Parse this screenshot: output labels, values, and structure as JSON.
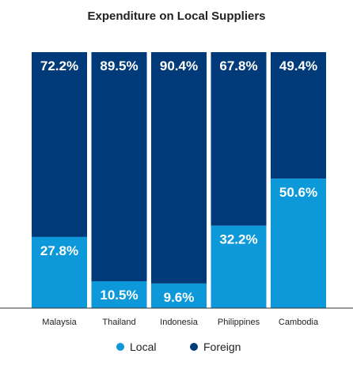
{
  "chart_data": {
    "type": "bar",
    "stacked": true,
    "title": "Expenditure on Local Suppliers",
    "categories": [
      "Malaysia",
      "Thailand",
      "Indonesia",
      "Philippines",
      "Cambodia"
    ],
    "series": [
      {
        "name": "Local",
        "color": "#0d99d9",
        "values": [
          27.8,
          10.5,
          9.6,
          32.2,
          50.6
        ],
        "labels": [
          "27.8%",
          "10.5%",
          "9.6%",
          "32.2%",
          "50.6%"
        ]
      },
      {
        "name": "Foreign",
        "color": "#003a78",
        "values": [
          72.2,
          89.5,
          90.4,
          67.8,
          49.4
        ],
        "labels": [
          "72.2%",
          "89.5%",
          "90.4%",
          "67.8%",
          "49.4%"
        ]
      }
    ],
    "ylim": [
      0,
      100
    ],
    "grid": false,
    "legend_position": "bottom",
    "label_color": "#ffffff",
    "text_color": "#222222",
    "axis_color": "#333333"
  }
}
